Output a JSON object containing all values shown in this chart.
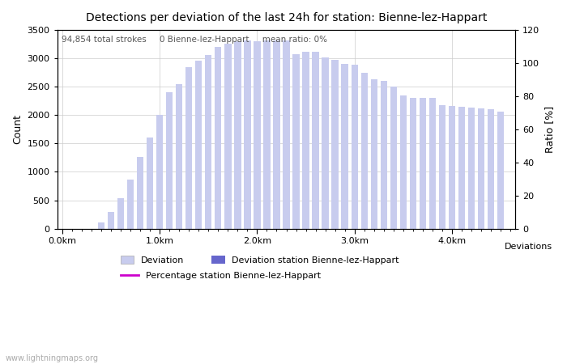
{
  "title": "Detections per deviation of the last 24h for station: Bienne-lez-Happart",
  "subtitle": "94,854 total strokes     0 Bienne-lez-Happart     mean ratio: 0%",
  "ylabel_left": "Count",
  "ylabel_right": "Ratio [%]",
  "xlabel": "Deviations",
  "ylim_left": [
    0,
    3500
  ],
  "ylim_right": [
    0,
    120
  ],
  "yticks_left": [
    0,
    500,
    1000,
    1500,
    2000,
    2500,
    3000,
    3500
  ],
  "yticks_right": [
    0,
    20,
    40,
    60,
    80,
    100,
    120
  ],
  "xtick_labels": [
    "0.0km",
    "1.0km",
    "2.0km",
    "3.0km",
    "4.0km"
  ],
  "bar_color_light": "#c8ccee",
  "bar_color_dark": "#6666cc",
  "line_color": "#cc00cc",
  "background_color": "#ffffff",
  "grid_color": "#cccccc",
  "watermark": "www.lightningmaps.org",
  "bar_positions": [
    0.1,
    0.2,
    0.3,
    0.4,
    0.5,
    0.6,
    0.7,
    0.8,
    0.9,
    1.0,
    1.1,
    1.2,
    1.3,
    1.4,
    1.5,
    1.6,
    1.7,
    1.8,
    1.9,
    2.0,
    2.1,
    2.2,
    2.3,
    2.4,
    2.5,
    2.6,
    2.7,
    2.8,
    2.9,
    3.0,
    3.1,
    3.2,
    3.3,
    3.4,
    3.5,
    3.6,
    3.7,
    3.8,
    3.9,
    4.0,
    4.1,
    4.2,
    4.3,
    4.4,
    4.5
  ],
  "bar_heights": [
    0,
    0,
    0,
    110,
    290,
    530,
    870,
    1270,
    1610,
    2010,
    2410,
    2540,
    2840,
    2960,
    3060,
    3200,
    3260,
    3300,
    3310,
    3300,
    3320,
    3320,
    3310,
    3080,
    3110,
    3110,
    3010,
    2980,
    2900,
    2890,
    2740,
    2630,
    2600,
    2500,
    2350,
    2310,
    2310,
    2300,
    2170,
    2160,
    2150,
    2130,
    2120,
    2110,
    2060
  ]
}
